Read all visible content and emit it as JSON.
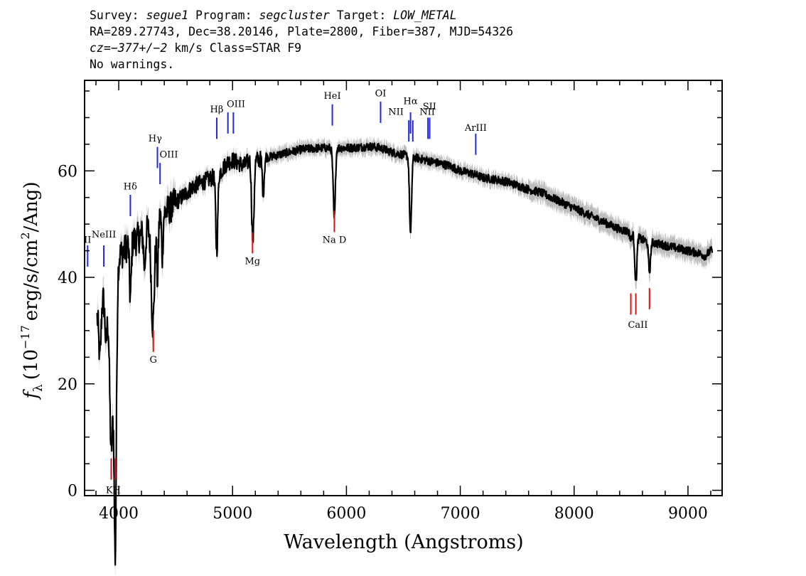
{
  "header": {
    "survey_label": "Survey:",
    "survey": "segue1",
    "program_label": "Program:",
    "program": "segcluster",
    "target_label": "Target:",
    "target": "LOW_METAL",
    "line2": "RA=289.27743, Dec=38.20146, Plate=2800, Fiber=387, MJD=54326",
    "cz_label": "cz=",
    "cz_value": "−377+/−2",
    "cz_unit": "km/s",
    "class": "Class=STAR F9",
    "warnings": "No warnings."
  },
  "chart_data": {
    "type": "line",
    "title": "",
    "xlabel": "Wavelength (Angstroms)",
    "ylabel_symbol": "f",
    "ylabel_subscript": "λ",
    "ylabel_units": "(10",
    "ylabel_exponent": "−17",
    "ylabel_units_rest": "erg/s/cm",
    "ylabel_units_exp": "2",
    "ylabel_units_end": "/Ang)",
    "xlim": [
      3700,
      9300
    ],
    "ylim": [
      -1,
      77
    ],
    "x_ticks": [
      4000,
      5000,
      6000,
      7000,
      8000,
      9000
    ],
    "x_tick_labels": [
      "4000",
      "5000",
      "6000",
      "7000",
      "8000",
      "9000"
    ],
    "y_ticks": [
      0,
      20,
      40,
      60
    ],
    "y_tick_labels": [
      "0",
      "20",
      "40",
      "60"
    ],
    "continuum": [
      [
        3800,
        32
      ],
      [
        3850,
        36
      ],
      [
        3900,
        37
      ],
      [
        3950,
        38
      ],
      [
        4000,
        44
      ],
      [
        4050,
        45
      ],
      [
        4100,
        47
      ],
      [
        4150,
        47
      ],
      [
        4200,
        48
      ],
      [
        4250,
        49
      ],
      [
        4300,
        50
      ],
      [
        4350,
        51
      ],
      [
        4400,
        52
      ],
      [
        4450,
        53
      ],
      [
        4500,
        54
      ],
      [
        4550,
        55
      ],
      [
        4600,
        56
      ],
      [
        4650,
        57
      ],
      [
        4700,
        57.5
      ],
      [
        4750,
        58
      ],
      [
        4800,
        58.5
      ],
      [
        4850,
        59
      ],
      [
        4900,
        60
      ],
      [
        4950,
        61.5
      ],
      [
        5000,
        62
      ],
      [
        5050,
        61.5
      ],
      [
        5100,
        61
      ],
      [
        5150,
        62
      ],
      [
        5200,
        62
      ],
      [
        5300,
        62.5
      ],
      [
        5400,
        63
      ],
      [
        5500,
        63.5
      ],
      [
        5600,
        64
      ],
      [
        5700,
        64.2
      ],
      [
        5800,
        64.3
      ],
      [
        5900,
        64.3
      ],
      [
        6000,
        64.3
      ],
      [
        6100,
        64.4
      ],
      [
        6200,
        64.6
      ],
      [
        6300,
        64.3
      ],
      [
        6400,
        63.5
      ],
      [
        6500,
        63
      ],
      [
        6600,
        62.5
      ],
      [
        6700,
        62
      ],
      [
        6800,
        61.5
      ],
      [
        6900,
        61
      ],
      [
        7000,
        60
      ],
      [
        7100,
        59.5
      ],
      [
        7200,
        58.7
      ],
      [
        7300,
        58.4
      ],
      [
        7400,
        58
      ],
      [
        7500,
        57.3
      ],
      [
        7600,
        56.5
      ],
      [
        7700,
        56
      ],
      [
        7800,
        55
      ],
      [
        7900,
        54
      ],
      [
        8000,
        53
      ],
      [
        8100,
        52
      ],
      [
        8200,
        51
      ],
      [
        8300,
        50
      ],
      [
        8400,
        49
      ],
      [
        8500,
        48.5
      ],
      [
        8600,
        47
      ],
      [
        8700,
        46.5
      ],
      [
        8800,
        46
      ],
      [
        8900,
        45.5
      ],
      [
        9000,
        45
      ],
      [
        9100,
        44.5
      ],
      [
        9150,
        44
      ],
      [
        9200,
        45
      ]
    ],
    "absorption_lines": [
      [
        3934,
        8,
        14
      ],
      [
        3969,
        9,
        12
      ],
      [
        3835,
        25,
        10
      ],
      [
        3889,
        28,
        10
      ],
      [
        3970,
        20,
        8
      ],
      [
        4102,
        36,
        8
      ],
      [
        4227,
        42,
        8
      ],
      [
        4300,
        31,
        14
      ],
      [
        4340,
        40,
        7
      ],
      [
        4383,
        44,
        6
      ],
      [
        4861,
        45,
        9
      ],
      [
        5172,
        53,
        8
      ],
      [
        5183,
        52,
        8
      ],
      [
        5269,
        56,
        8
      ],
      [
        5890,
        57,
        10
      ],
      [
        5896,
        57.5,
        8
      ],
      [
        6563,
        48,
        9
      ],
      [
        8498,
        47,
        8
      ],
      [
        8542,
        39,
        9
      ],
      [
        8662,
        41,
        9
      ]
    ],
    "emission_markers": [
      {
        "label": "OII",
        "x": 3727,
        "top": 42,
        "bottom": 46
      },
      {
        "label": "NeIII",
        "x": 3869,
        "top": 42,
        "bottom": 46
      },
      {
        "label": "Hδ",
        "x": 4102,
        "top": 51.5,
        "bottom": 55.5
      },
      {
        "label": "Hγ",
        "x": 4340,
        "top": 60.5,
        "bottom": 64.5
      },
      {
        "label": "OIII",
        "x": 4363,
        "top": 57.5,
        "bottom": 61.5
      },
      {
        "label": "Hβ",
        "x": 4861,
        "top": 66,
        "bottom": 70
      },
      {
        "label": "OIII",
        "x": 4959,
        "top": 67,
        "bottom": 71
      },
      {
        "label": "OIII",
        "x": 5007,
        "top": 67,
        "bottom": 71
      },
      {
        "label": "HeI",
        "x": 5876,
        "top": 68.5,
        "bottom": 72.5
      },
      {
        "label": "OI",
        "x": 6300,
        "top": 69,
        "bottom": 73
      },
      {
        "label": "NII",
        "x": 6548,
        "top": 65.5,
        "bottom": 69.5
      },
      {
        "label": "Hα",
        "x": 6563,
        "top": 67,
        "bottom": 71
      },
      {
        "label": "NII",
        "x": 6583,
        "top": 65.5,
        "bottom": 69.5
      },
      {
        "label": "SII",
        "x": 6716,
        "top": 66,
        "bottom": 70
      },
      {
        "label": "SII",
        "x": 6731,
        "top": 66,
        "bottom": 70
      },
      {
        "label": "ArIII",
        "x": 7136,
        "top": 63,
        "bottom": 67
      }
    ],
    "absorption_markers": [
      {
        "label": "K",
        "x": 3934,
        "top": 2,
        "bottom": 6
      },
      {
        "label": "H",
        "x": 3969,
        "top": 2,
        "bottom": 6
      },
      {
        "label": "G",
        "x": 4304,
        "top": 26,
        "bottom": 30
      },
      {
        "label": "Mg",
        "x": 5175,
        "top": 44.5,
        "bottom": 48.5
      },
      {
        "label": "Na D",
        "x": 5894,
        "top": 48.5,
        "bottom": 52.5
      },
      {
        "label": "CaII",
        "x": 8498,
        "top": 33,
        "bottom": 37
      },
      {
        "label": "CaII",
        "x": 8542,
        "top": 33,
        "bottom": 37
      },
      {
        "label": "CaII",
        "x": 8662,
        "top": 34,
        "bottom": 38
      }
    ],
    "marker_labels": [
      {
        "text": "II",
        "x": 3727,
        "y": 46.5
      },
      {
        "text": "NeIII",
        "x": 3869,
        "y": 47.5
      },
      {
        "text": "Hδ",
        "x": 4102,
        "y": 56.5
      },
      {
        "text": "Hγ",
        "x": 4320,
        "y": 65.5
      },
      {
        "text": "OIII",
        "x": 4440,
        "y": 62.5
      },
      {
        "text": "Hβ",
        "x": 4861,
        "y": 71
      },
      {
        "text": "OIII",
        "x": 5030,
        "y": 72
      },
      {
        "text": "HeI",
        "x": 5876,
        "y": 73.5
      },
      {
        "text": "OI",
        "x": 6300,
        "y": 74
      },
      {
        "text": "NII",
        "x": 6435,
        "y": 70.5
      },
      {
        "text": "Hα",
        "x": 6563,
        "y": 72.5
      },
      {
        "text": "NII",
        "x": 6710,
        "y": 70.5
      },
      {
        "text": "SII",
        "x": 6730,
        "y": 71.5
      },
      {
        "text": "ArIII",
        "x": 7136,
        "y": 67.5
      },
      {
        "text": "KH",
        "x": 3952,
        "y": -0.5
      },
      {
        "text": "G",
        "x": 4304,
        "y": 24
      },
      {
        "text": "Mg",
        "x": 5175,
        "y": 42.5
      },
      {
        "text": "Na D",
        "x": 5894,
        "y": 46.5
      },
      {
        "text": "CaII",
        "x": 8560,
        "y": 30.5
      }
    ],
    "colors": {
      "flux": "#000000",
      "error": "#bdbdbd",
      "emission": "#1f2bd9",
      "absorption": "#e01010",
      "axes": "#000000"
    }
  }
}
